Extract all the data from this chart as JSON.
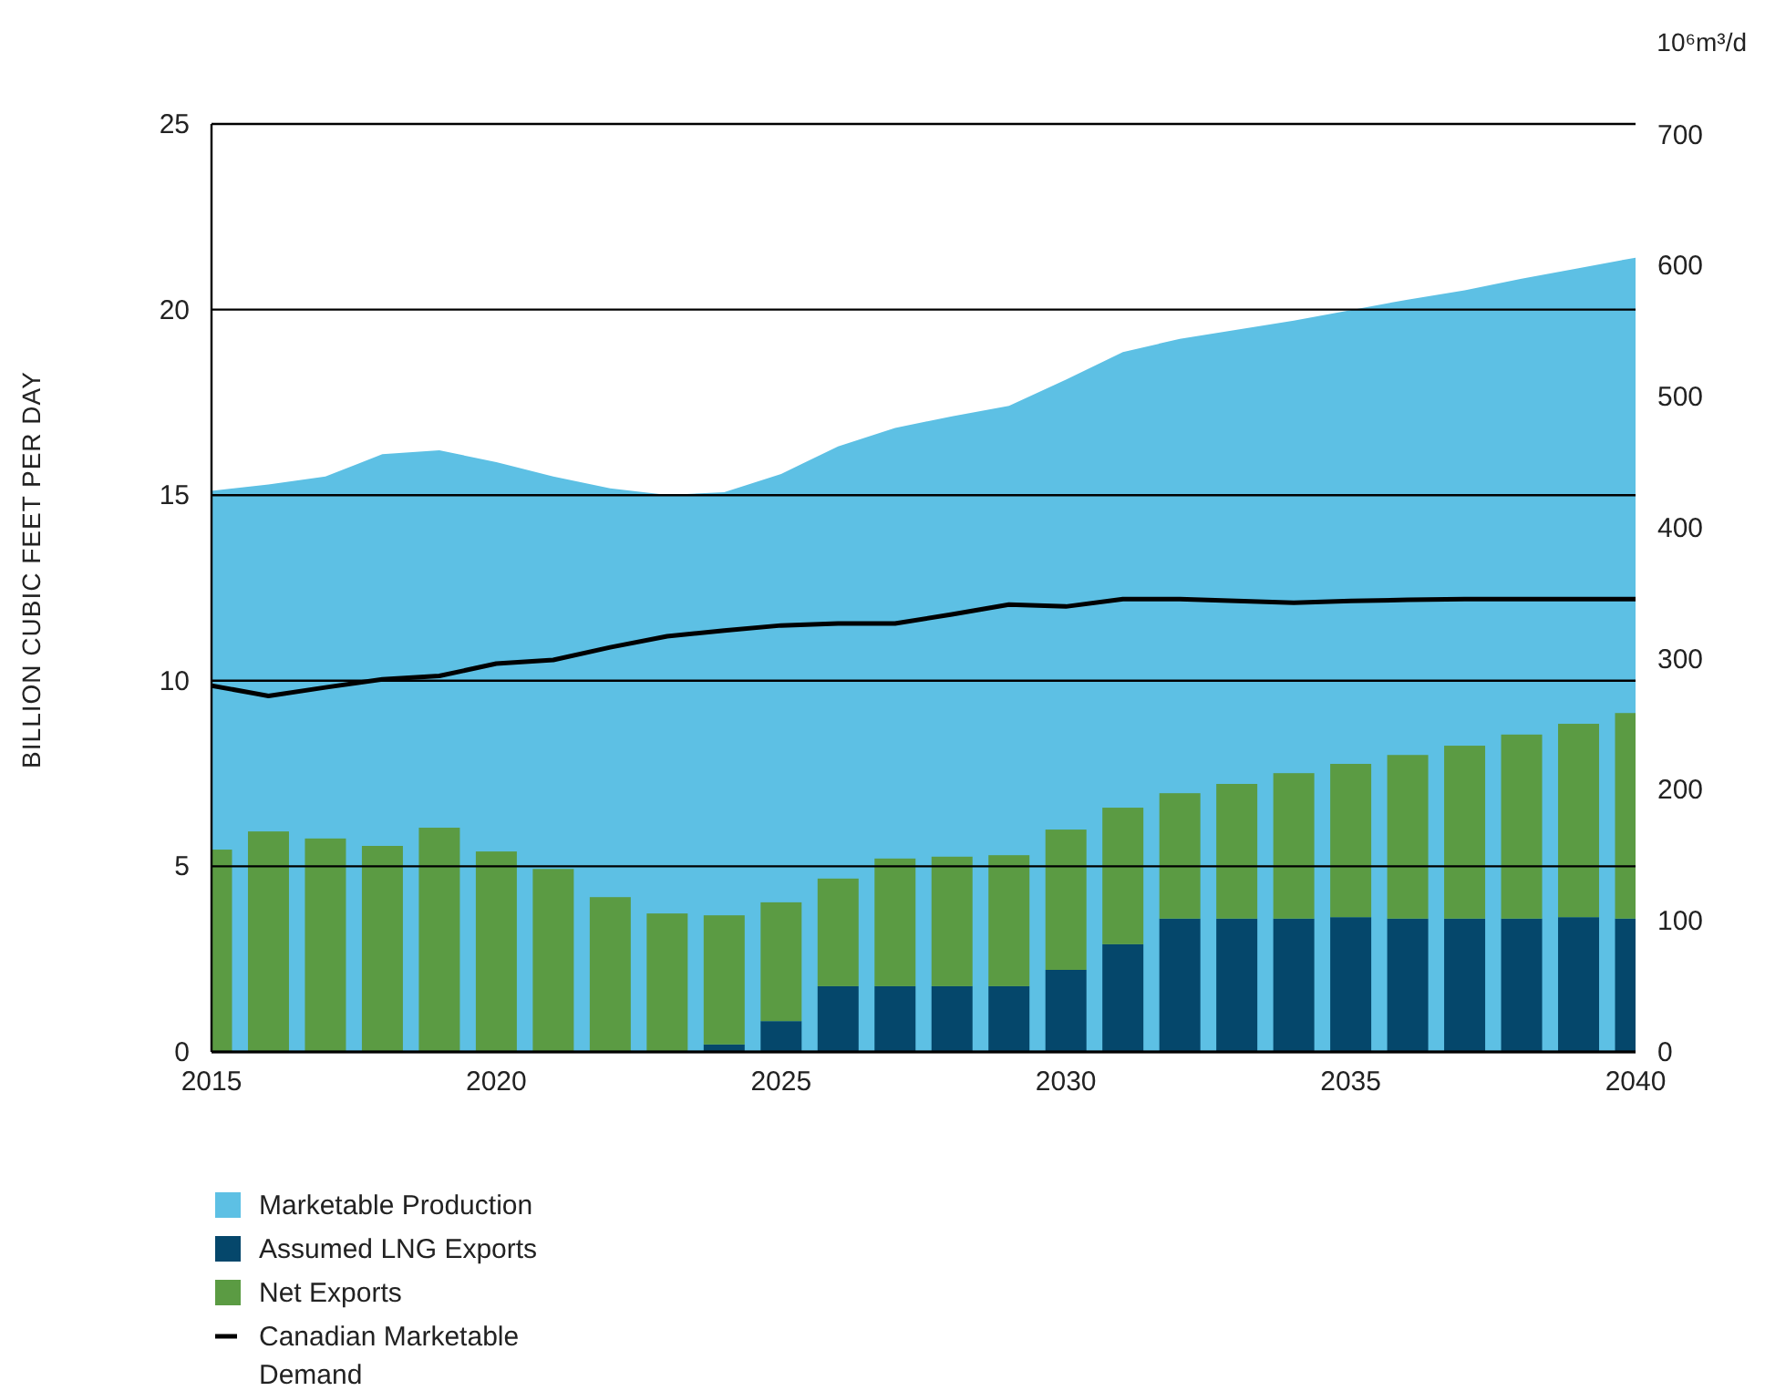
{
  "chart_data": {
    "type": "bar",
    "ylabel": "BILLION CUBIC FEET PER DAY",
    "y2label": "10⁶m³/d",
    "x": [
      2015,
      2016,
      2017,
      2018,
      2019,
      2020,
      2021,
      2022,
      2023,
      2024,
      2025,
      2026,
      2027,
      2028,
      2029,
      2030,
      2031,
      2032,
      2033,
      2034,
      2035,
      2036,
      2037,
      2038,
      2039,
      2040
    ],
    "xlim": [
      2015,
      2040
    ],
    "xticks": [
      2015,
      2020,
      2025,
      2030,
      2035,
      2040
    ],
    "ylim": [
      0,
      25
    ],
    "yticks": [
      0,
      5,
      10,
      15,
      20,
      25
    ],
    "y2lim": [
      0,
      708
    ],
    "y2ticks": [
      0,
      100,
      200,
      300,
      400,
      500,
      600,
      700
    ],
    "grid": "y",
    "legend": "bottom left",
    "stacked": true,
    "series": [
      {
        "name": "Marketable Production",
        "type": "area",
        "axis": "y2",
        "color": "#5dc0e4",
        "values": [
          428,
          433,
          439,
          456,
          459,
          450,
          439,
          430,
          425,
          427,
          441,
          462,
          476,
          485,
          493,
          513,
          534,
          544,
          551,
          558,
          566,
          574,
          581,
          590,
          598,
          606
        ]
      },
      {
        "name": "Assumed LNG Exports",
        "color": "#05476b",
        "values": [
          0,
          0,
          0,
          0,
          0,
          0,
          0,
          0,
          0,
          0.2,
          0.83,
          1.77,
          1.77,
          1.77,
          1.77,
          2.21,
          2.9,
          3.59,
          3.59,
          3.59,
          3.63,
          3.59,
          3.59,
          3.59,
          3.63,
          3.59
        ]
      },
      {
        "name": "Net Exports",
        "color": "#5b9b43",
        "values": [
          5.45,
          5.94,
          5.75,
          5.55,
          6.04,
          5.4,
          4.93,
          4.17,
          3.73,
          3.48,
          3.2,
          2.9,
          3.44,
          3.49,
          3.53,
          3.78,
          3.68,
          3.38,
          3.63,
          3.92,
          4.13,
          4.41,
          4.66,
          4.96,
          5.21,
          5.54
        ]
      },
      {
        "name": "Canadian Marketable Demand",
        "type": "line",
        "color": "#000000",
        "values": [
          9.87,
          9.59,
          9.82,
          10.04,
          10.13,
          10.46,
          10.56,
          10.9,
          11.2,
          11.35,
          11.49,
          11.54,
          11.54,
          11.79,
          12.05,
          12.0,
          12.2,
          12.2,
          12.15,
          12.1,
          12.15,
          12.18,
          12.2,
          12.2,
          12.2,
          12.2
        ]
      }
    ]
  }
}
